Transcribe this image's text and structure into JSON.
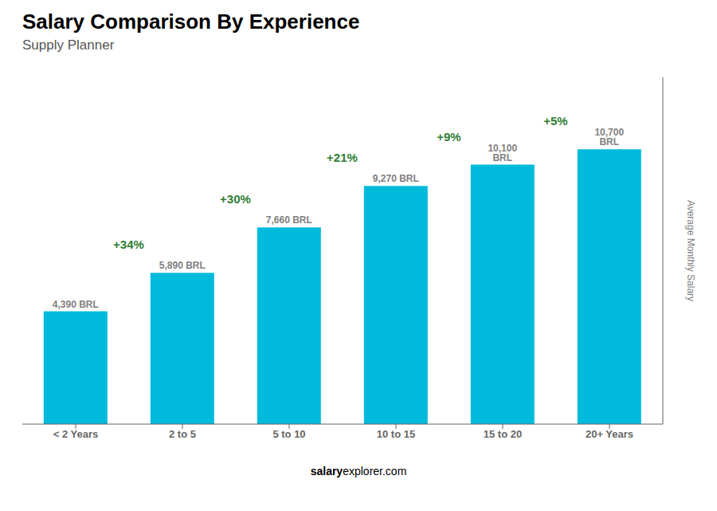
{
  "chart_data": {
    "type": "bar",
    "title": "Salary Comparison By Experience",
    "subtitle": "Supply Planner",
    "ylabel": "Average Monthly Salary",
    "categories": [
      "< 2 Years",
      "2 to 5",
      "5 to 10",
      "10 to 15",
      "15 to 20",
      "20+ Years"
    ],
    "values": [
      4390,
      5890,
      7660,
      9270,
      10100,
      10700
    ],
    "value_labels": [
      "4,390 BRL",
      "5,890 BRL",
      "7,660 BRL",
      "9,270 BRL",
      "10,100 BRL",
      "10,700 BRL"
    ],
    "data_labels": true,
    "color": "#00BADC",
    "ylim": [
      0,
      13500
    ],
    "tick_labels": "x",
    "grid": false,
    "annotations": [
      "+34%",
      "+30%",
      "+21%",
      "+9%",
      "+5%"
    ],
    "footer": [
      "salary",
      "explorer.com"
    ]
  }
}
